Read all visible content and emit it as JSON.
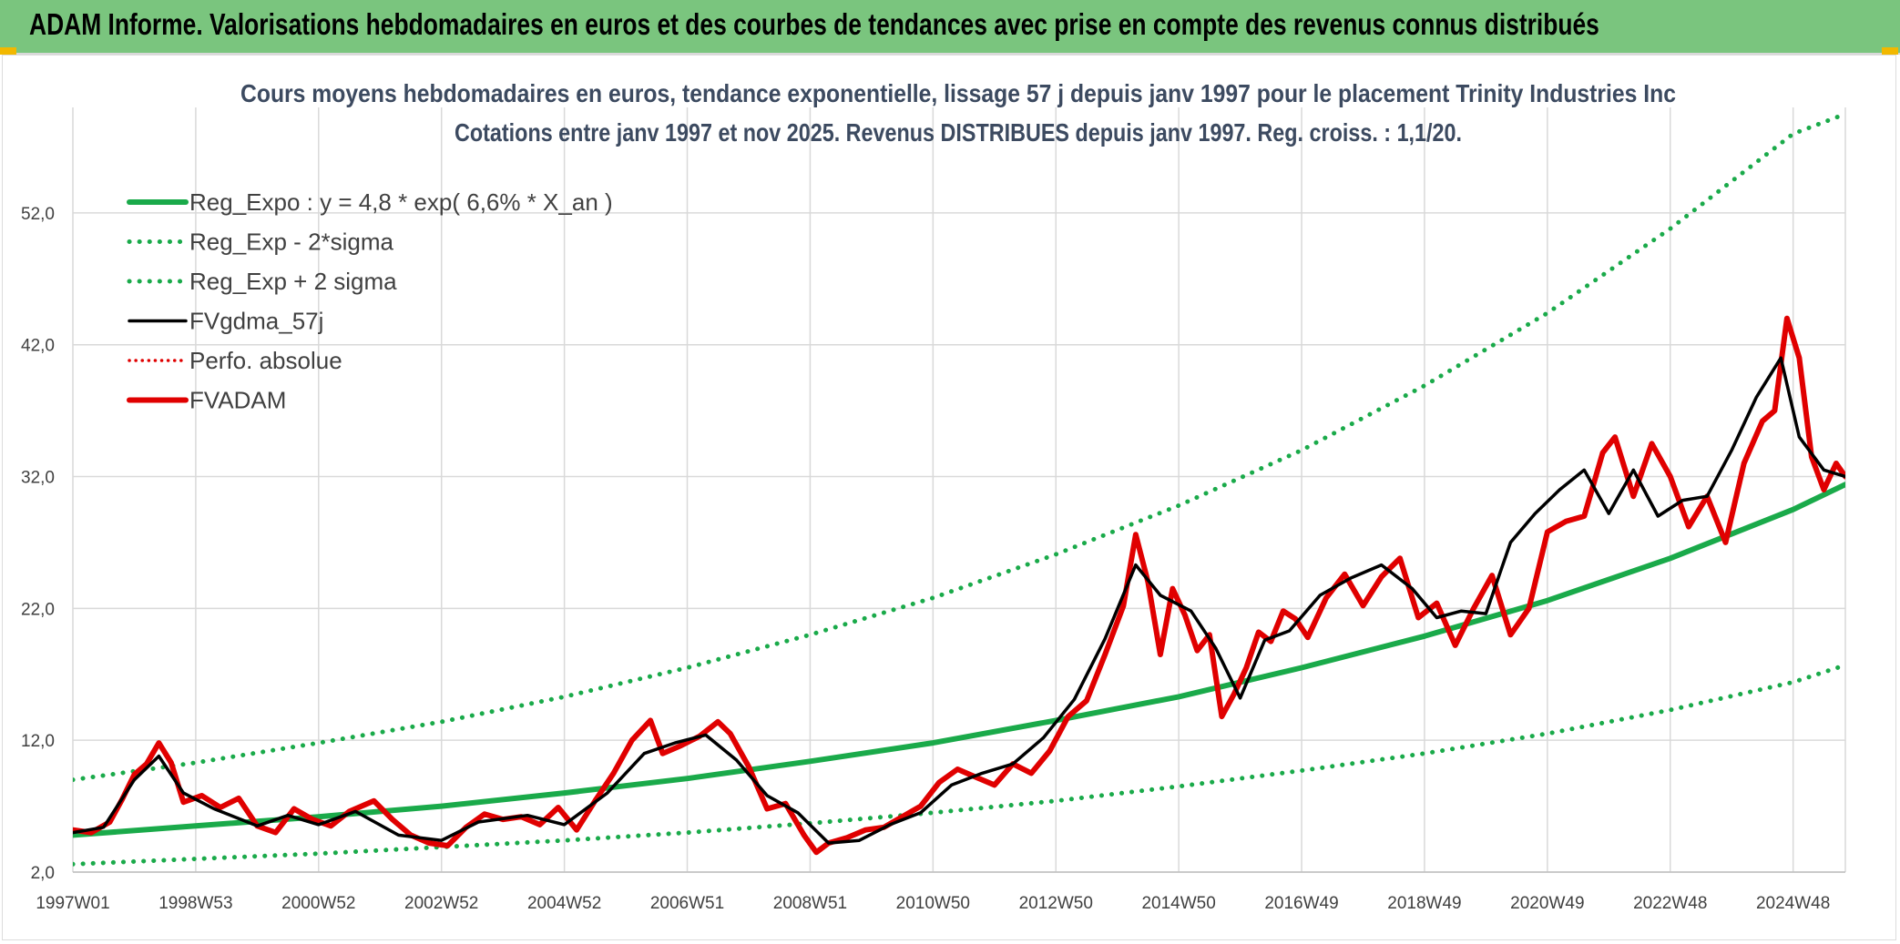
{
  "header": {
    "title": "ADAM Informe. Valorisations hebdomadaires en euros et des courbes de tendances avec prise en compte des revenus connus distribués"
  },
  "chart_data": {
    "type": "line",
    "title": "Cours moyens hebdomadaires en euros, tendance exponentielle, lissage 57 j depuis janv 1997 pour le placement Trinity Industries Inc",
    "subtitle": "Cotations entre janv 1997 et nov 2025. Revenus DISTRIBUES depuis janv 1997. Reg. croiss. : 1,1/20.",
    "xlabel": "",
    "ylabel": "",
    "ylim": [
      2,
      60
    ],
    "xlim": [
      1997.0,
      2025.85
    ],
    "y_ticks": [
      "2,0",
      "12,0",
      "22,0",
      "32,0",
      "42,0",
      "52,0"
    ],
    "y_tick_values": [
      2,
      12,
      22,
      32,
      42,
      52
    ],
    "x_tick_labels": [
      "1997W01",
      "1998W53",
      "2000W52",
      "2002W52",
      "2004W52",
      "2006W51",
      "2008W51",
      "2010W50",
      "2012W50",
      "2014W50",
      "2016W49",
      "2018W49",
      "2020W49",
      "2022W48",
      "2024W48"
    ],
    "x_tick_positions": [
      1997.0,
      1999.0,
      2001.0,
      2003.0,
      2005.0,
      2007.0,
      2009.0,
      2011.0,
      2013.0,
      2015.0,
      2017.0,
      2019.0,
      2021.0,
      2023.0,
      2025.0
    ],
    "grid": true,
    "legend_position": "top-left",
    "series": [
      {
        "name": "Reg_Expo : y = 4,8 * exp( 6,6% *  X_an )",
        "color": "#1aaa4a",
        "style": "solid-thick",
        "x": [
          1997.0,
          1999.0,
          2001.0,
          2003.0,
          2005.0,
          2007.0,
          2009.0,
          2011.0,
          2013.0,
          2015.0,
          2017.0,
          2019.0,
          2021.0,
          2023.0,
          2025.0,
          2025.85
        ],
        "values": [
          4.8,
          5.5,
          6.2,
          7.0,
          8.0,
          9.1,
          10.4,
          11.8,
          13.5,
          15.3,
          17.5,
          19.9,
          22.6,
          25.8,
          29.5,
          31.4
        ]
      },
      {
        "name": "Reg_Exp - 2*sigma",
        "color": "#1aaa4a",
        "style": "dotted",
        "x": [
          1997.0,
          1999.0,
          2001.0,
          2003.0,
          2005.0,
          2007.0,
          2009.0,
          2011.0,
          2013.0,
          2015.0,
          2017.0,
          2019.0,
          2021.0,
          2023.0,
          2025.0,
          2025.85
        ],
        "values": [
          2.6,
          3.0,
          3.4,
          3.9,
          4.4,
          5.0,
          5.7,
          6.5,
          7.4,
          8.5,
          9.7,
          11.0,
          12.5,
          14.3,
          16.4,
          17.7
        ]
      },
      {
        "name": "Reg_Exp + 2 sigma",
        "color": "#1aaa4a",
        "style": "dotted",
        "x": [
          1997.0,
          1999.0,
          2001.0,
          2003.0,
          2005.0,
          2007.0,
          2009.0,
          2011.0,
          2013.0,
          2015.0,
          2017.0,
          2019.0,
          2021.0,
          2023.0,
          2025.0,
          2025.85
        ],
        "values": [
          9.0,
          10.3,
          11.8,
          13.4,
          15.3,
          17.5,
          20.0,
          22.8,
          26.1,
          29.8,
          34.0,
          38.9,
          44.4,
          50.8,
          58.0,
          59.5
        ]
      },
      {
        "name": "FVgdma_57j",
        "color": "#000000",
        "style": "solid",
        "x": [
          1997.0,
          1997.5,
          1998.0,
          1998.4,
          1998.8,
          1999.3,
          2000.0,
          2000.5,
          2001.0,
          2001.6,
          2002.3,
          2003.0,
          2003.6,
          2004.4,
          2005.0,
          2005.7,
          2006.3,
          2006.8,
          2007.3,
          2007.8,
          2008.3,
          2008.8,
          2009.3,
          2009.8,
          2010.3,
          2010.8,
          2011.3,
          2011.8,
          2012.3,
          2012.8,
          2013.3,
          2013.8,
          2014.3,
          2014.7,
          2015.2,
          2015.6,
          2016.0,
          2016.4,
          2016.8,
          2017.3,
          2017.8,
          2018.3,
          2018.8,
          2019.2,
          2019.6,
          2020.0,
          2020.4,
          2020.8,
          2021.2,
          2021.6,
          2022.0,
          2022.4,
          2022.8,
          2023.2,
          2023.6,
          2024.0,
          2024.4,
          2024.8,
          2025.1,
          2025.5,
          2025.85
        ],
        "values": [
          5.0,
          5.4,
          9.0,
          10.8,
          8.0,
          6.8,
          5.5,
          6.3,
          5.6,
          6.6,
          4.8,
          4.4,
          5.8,
          6.3,
          5.6,
          8.0,
          11.0,
          11.8,
          12.4,
          10.5,
          7.8,
          6.5,
          4.2,
          4.4,
          5.6,
          6.5,
          8.6,
          9.5,
          10.2,
          12.2,
          15.1,
          19.7,
          25.3,
          23.0,
          21.8,
          19.0,
          15.2,
          19.6,
          20.3,
          23.0,
          24.3,
          25.3,
          23.5,
          21.3,
          21.8,
          21.6,
          27.0,
          29.2,
          31.0,
          32.5,
          29.2,
          32.5,
          29.0,
          30.2,
          30.5,
          34.0,
          38.0,
          41.0,
          35.0,
          32.5,
          32.0
        ]
      },
      {
        "name": "Perfo. absolue",
        "color": "#e00000",
        "style": "dotted",
        "x": [],
        "values": []
      },
      {
        "name": "FVADAM",
        "color": "#e00000",
        "style": "solid-thick",
        "x": [
          1997.0,
          1997.3,
          1997.6,
          1997.8,
          1998.0,
          1998.2,
          1998.4,
          1998.6,
          1998.8,
          1999.1,
          1999.4,
          1999.7,
          2000.0,
          2000.3,
          2000.6,
          2000.9,
          2001.2,
          2001.5,
          2001.9,
          2002.2,
          2002.5,
          2002.8,
          2003.1,
          2003.4,
          2003.7,
          2004.0,
          2004.3,
          2004.6,
          2004.9,
          2005.2,
          2005.5,
          2005.8,
          2006.1,
          2006.4,
          2006.6,
          2006.9,
          2007.2,
          2007.5,
          2007.7,
          2008.0,
          2008.3,
          2008.6,
          2008.9,
          2009.1,
          2009.3,
          2009.6,
          2009.9,
          2010.2,
          2010.5,
          2010.8,
          2011.1,
          2011.4,
          2011.7,
          2012.0,
          2012.3,
          2012.6,
          2012.9,
          2013.2,
          2013.5,
          2013.8,
          2014.1,
          2014.3,
          2014.5,
          2014.7,
          2014.9,
          2015.1,
          2015.3,
          2015.5,
          2015.7,
          2015.9,
          2016.1,
          2016.3,
          2016.5,
          2016.7,
          2016.9,
          2017.1,
          2017.4,
          2017.7,
          2018.0,
          2018.3,
          2018.6,
          2018.9,
          2019.2,
          2019.5,
          2019.8,
          2020.1,
          2020.4,
          2020.7,
          2021.0,
          2021.3,
          2021.6,
          2021.9,
          2022.1,
          2022.4,
          2022.7,
          2023.0,
          2023.3,
          2023.6,
          2023.9,
          2024.2,
          2024.5,
          2024.7,
          2024.9,
          2025.1,
          2025.3,
          2025.5,
          2025.7,
          2025.85
        ],
        "values": [
          5.2,
          5.0,
          5.8,
          7.5,
          9.4,
          10.2,
          11.8,
          10.3,
          7.3,
          7.8,
          6.9,
          7.6,
          5.5,
          5.0,
          6.8,
          6.0,
          5.5,
          6.6,
          7.4,
          6.0,
          4.8,
          4.2,
          4.0,
          5.4,
          6.4,
          6.0,
          6.2,
          5.6,
          6.9,
          5.2,
          7.4,
          9.5,
          12.0,
          13.5,
          11.0,
          11.6,
          12.3,
          13.4,
          12.5,
          10.0,
          6.8,
          7.2,
          4.8,
          3.5,
          4.2,
          4.6,
          5.2,
          5.4,
          6.2,
          7.0,
          8.8,
          9.8,
          9.2,
          8.6,
          10.2,
          9.5,
          11.2,
          13.8,
          15.0,
          18.5,
          22.2,
          27.6,
          24.0,
          18.5,
          23.5,
          21.5,
          18.8,
          20.0,
          13.8,
          15.5,
          17.5,
          20.2,
          19.5,
          21.8,
          21.2,
          19.8,
          22.8,
          24.6,
          22.2,
          24.4,
          25.8,
          21.3,
          22.4,
          19.2,
          22.0,
          24.5,
          20.0,
          22.0,
          27.8,
          28.6,
          29.0,
          33.8,
          35.0,
          30.5,
          34.5,
          32.0,
          28.2,
          30.5,
          27.0,
          33.0,
          36.2,
          37.0,
          44.0,
          41.0,
          33.5,
          31.0,
          33.0,
          32.0
        ]
      }
    ]
  }
}
